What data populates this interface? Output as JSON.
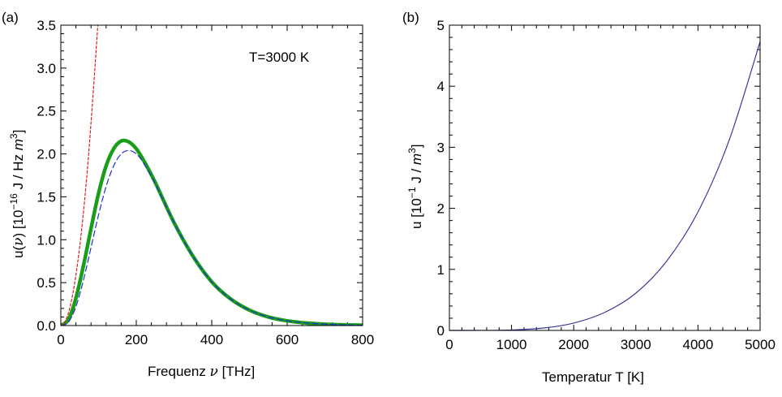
{
  "chart_data": [
    {
      "panel_label": "(a)",
      "type": "line",
      "annotation": "T=3000 K",
      "xlabel_prefix": "Frequenz ",
      "xlabel_sym": "ν",
      "xlabel_unit": " [THz]",
      "ylabel_prefix": "u(",
      "ylabel_sym": "ν",
      "ylabel_mid": ") [10",
      "ylabel_exp": "−16",
      "ylabel_units": " J / Hz ",
      "ylabel_m": "m",
      "ylabel_m_exp": "3",
      "ylabel_close": "]",
      "xlim": [
        0,
        800
      ],
      "ylim": [
        0,
        3.5
      ],
      "xticks": [
        0,
        200,
        400,
        600,
        800
      ],
      "xtick_labels": [
        "0",
        "200",
        "400",
        "600",
        "800"
      ],
      "yticks": [
        0,
        0.5,
        1.0,
        1.5,
        2.0,
        2.5,
        3.0,
        3.5
      ],
      "ytick_labels": [
        "0.0",
        "0.5",
        "1.0",
        "1.5",
        "2.0",
        "2.5",
        "3.0",
        "3.5"
      ],
      "series": [
        {
          "style": "solid",
          "color": "#1a9e1a",
          "x": [
            0,
            20,
            40,
            60,
            80,
            100,
            120,
            140,
            160,
            180,
            200,
            220,
            250,
            300,
            350,
            400,
            450,
            500,
            550,
            600,
            650,
            700,
            750,
            800
          ],
          "y": [
            0,
            0.07,
            0.32,
            0.7,
            1.13,
            1.54,
            1.86,
            2.06,
            2.15,
            2.14,
            2.06,
            1.92,
            1.67,
            1.2,
            0.81,
            0.51,
            0.31,
            0.18,
            0.1,
            0.055,
            0.03,
            0.016,
            0.008,
            0.004
          ]
        },
        {
          "style": "dashed",
          "color": "#1f2fd6",
          "x": [
            0,
            20,
            40,
            60,
            80,
            100,
            120,
            140,
            160,
            180,
            200,
            220,
            250,
            300,
            350,
            400,
            450,
            500,
            550,
            600,
            650,
            700,
            750,
            800
          ],
          "y": [
            0,
            0.04,
            0.22,
            0.53,
            0.91,
            1.29,
            1.62,
            1.86,
            2.0,
            2.04,
            2.0,
            1.89,
            1.66,
            1.2,
            0.81,
            0.51,
            0.31,
            0.18,
            0.1,
            0.055,
            0.03,
            0.016,
            0.008,
            0.004
          ]
        },
        {
          "style": "dashed",
          "color": "#e01b1b",
          "x": [
            0,
            10,
            20,
            30,
            40,
            50,
            60,
            70,
            80,
            90,
            98
          ],
          "y": [
            0,
            0.037,
            0.147,
            0.331,
            0.59,
            0.92,
            1.32,
            1.8,
            2.36,
            2.98,
            3.5
          ]
        }
      ]
    },
    {
      "panel_label": "(b)",
      "type": "line",
      "xlabel": "Temperatur T [K]",
      "ylabel_main": "u [10",
      "ylabel_exp": "−1",
      "ylabel_units": " J / ",
      "ylabel_m": "m",
      "ylabel_m_exp": "3",
      "ylabel_close": "]",
      "xlim": [
        0,
        5000
      ],
      "ylim": [
        0,
        5
      ],
      "xticks": [
        0,
        1000,
        2000,
        3000,
        4000,
        5000
      ],
      "xtick_labels": [
        "0",
        "1000",
        "2000",
        "3000",
        "4000",
        "5000"
      ],
      "yticks": [
        0,
        1,
        2,
        3,
        4,
        5
      ],
      "ytick_labels": [
        "0",
        "1",
        "2",
        "3",
        "4",
        "5"
      ],
      "series": [
        {
          "style": "solid",
          "color": "#3a3a9a",
          "x": [
            0,
            500,
            1000,
            1500,
            2000,
            2500,
            3000,
            3500,
            4000,
            4500,
            5000
          ],
          "y": [
            0,
            0.0005,
            0.0076,
            0.038,
            0.121,
            0.296,
            0.61,
            1.14,
            1.94,
            3.11,
            4.73
          ]
        }
      ]
    }
  ]
}
